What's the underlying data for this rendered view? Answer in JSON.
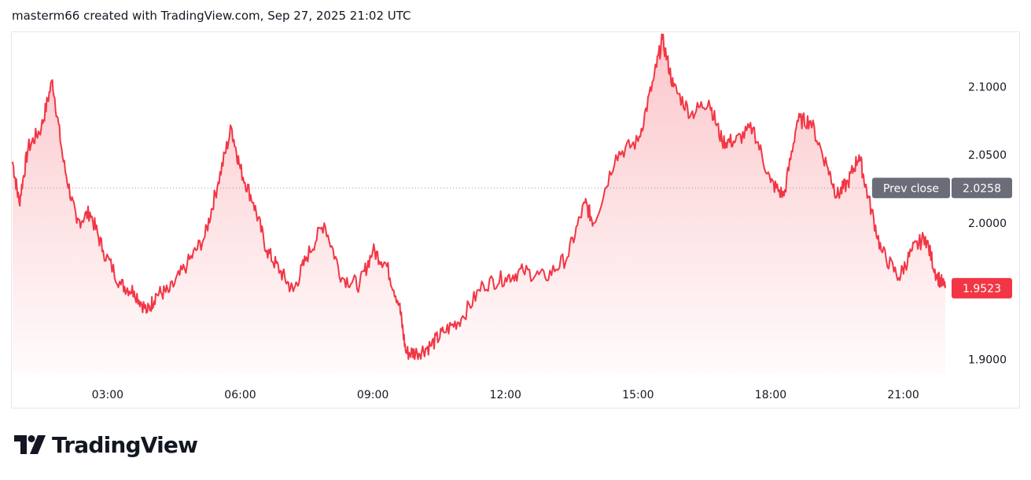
{
  "header": {
    "caption": "masterm66 created with TradingView.com, Sep 27, 2025 21:02 UTC"
  },
  "brand": {
    "wordmark": "TradingView"
  },
  "colors": {
    "line": "#f23645",
    "prev_close_badge": "#6a6d78",
    "last_badge": "#f23645",
    "grid_dots": "#9598a1"
  },
  "chart_data": {
    "type": "area",
    "title": "",
    "xlabel": "",
    "ylabel": "",
    "x_ticks": [
      "03:00",
      "06:00",
      "09:00",
      "12:00",
      "15:00",
      "18:00",
      "21:00"
    ],
    "y_ticks": [
      "2.1000",
      "2.0500",
      "2.0000",
      "1.9000"
    ],
    "ylim": [
      1.89,
      2.14
    ],
    "xlim_hours": [
      0.85,
      21.95
    ],
    "prev_close": {
      "label": "Prev close",
      "value": "2.0258",
      "number": 2.0258
    },
    "last_price": {
      "value": "1.9523",
      "number": 1.9523
    },
    "series": [
      {
        "x_hours": [
          0.85,
          1.0,
          1.2,
          1.5,
          1.75,
          2.0,
          2.3,
          2.6,
          2.9,
          3.3,
          3.6,
          3.9,
          4.1,
          4.4,
          4.8,
          5.2,
          5.5,
          5.8,
          6.0,
          6.3,
          6.6,
          6.9,
          7.2,
          7.5,
          7.9,
          8.3,
          8.7,
          9.0,
          9.3,
          9.6,
          9.75,
          10.0,
          10.3,
          10.6,
          11.0,
          11.5,
          12.0,
          12.4,
          12.9,
          13.4,
          13.8,
          14.0,
          14.5,
          15.0,
          15.35,
          15.55,
          15.8,
          16.2,
          16.6,
          16.9,
          17.2,
          17.6,
          18.0,
          18.3,
          18.6,
          18.9,
          19.3,
          19.5,
          19.75,
          20.0,
          20.2,
          20.5,
          20.9,
          21.2,
          21.5,
          21.75,
          21.95
        ],
        "values": [
          2.045,
          2.015,
          2.055,
          2.07,
          2.105,
          2.045,
          2.0,
          2.008,
          1.98,
          1.955,
          1.95,
          1.935,
          1.948,
          1.95,
          1.97,
          1.99,
          2.03,
          2.07,
          2.04,
          2.015,
          1.98,
          1.965,
          1.95,
          1.975,
          2.0,
          1.96,
          1.955,
          1.98,
          1.97,
          1.94,
          1.905,
          1.905,
          1.91,
          1.92,
          1.93,
          1.955,
          1.96,
          1.965,
          1.96,
          1.975,
          2.015,
          2.0,
          2.05,
          2.06,
          2.105,
          2.135,
          2.1,
          2.08,
          2.09,
          2.06,
          2.06,
          2.07,
          2.03,
          2.02,
          2.075,
          2.075,
          2.04,
          2.02,
          2.03,
          2.05,
          2.02,
          1.98,
          1.96,
          1.98,
          1.99,
          1.962,
          1.9523
        ]
      }
    ]
  }
}
